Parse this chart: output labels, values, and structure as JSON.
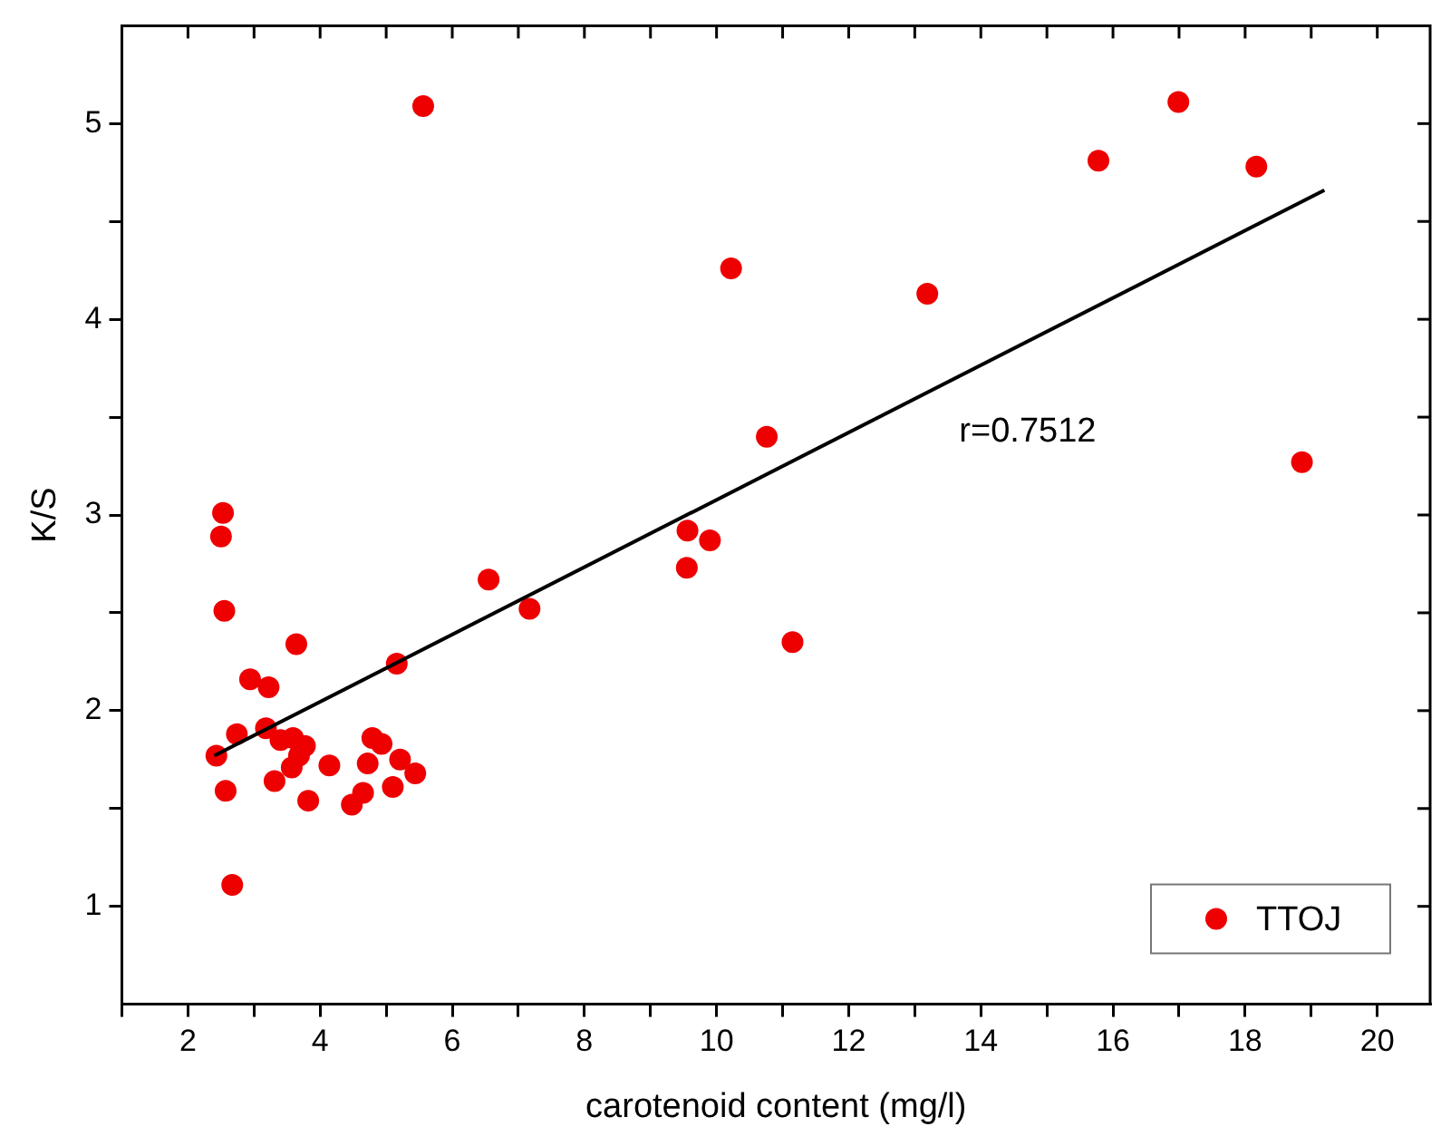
{
  "chart_data": {
    "type": "scatter",
    "xlabel": "carotenoid content (mg/l)",
    "ylabel": "K/S",
    "xlim": [
      1,
      20.8
    ],
    "ylim": [
      0.5,
      5.5
    ],
    "xticks": [
      {
        "value": 1,
        "label": null
      },
      2,
      {
        "value": 3,
        "label": null
      },
      4,
      {
        "value": 5,
        "label": null
      },
      6,
      {
        "value": 7,
        "label": null
      },
      8,
      {
        "value": 9,
        "label": null
      },
      10,
      {
        "value": 11,
        "label": null
      },
      12,
      {
        "value": 13,
        "label": null
      },
      14,
      {
        "value": 15,
        "label": null
      },
      16,
      {
        "value": 17,
        "label": null
      },
      18,
      {
        "value": 19,
        "label": null
      },
      20
    ],
    "yticks": [
      1,
      {
        "value": 1.5,
        "label": null
      },
      2,
      {
        "value": 2.5,
        "label": null
      },
      3,
      {
        "value": 3.5,
        "label": null
      },
      4,
      {
        "value": 4.5,
        "label": null
      },
      5
    ],
    "series": [
      {
        "name": "TTOJ",
        "marker": "circle",
        "color": "#ee0000",
        "x": [
          5.56,
          10.22,
          13.19,
          15.78,
          16.99,
          18.17,
          18.86,
          10.76,
          9.56,
          9.9,
          2.53,
          2.5,
          9.55,
          7.17,
          6.55,
          11.15,
          2.55,
          3.64,
          2.94,
          3.22,
          5.16,
          2.43,
          2.74,
          3.18,
          3.4,
          3.59,
          3.77,
          3.68,
          3.57,
          3.31,
          3.82,
          4.14,
          4.79,
          4.93,
          4.72,
          5.21,
          5.44,
          5.1,
          4.65,
          4.48,
          2.57,
          2.67
        ],
        "values": [
          5.09,
          4.26,
          4.13,
          4.81,
          5.11,
          4.78,
          3.27,
          3.4,
          2.92,
          2.87,
          3.01,
          2.89,
          2.73,
          2.52,
          2.67,
          2.35,
          2.51,
          2.34,
          2.16,
          2.12,
          2.24,
          1.77,
          1.88,
          1.91,
          1.85,
          1.86,
          1.82,
          1.77,
          1.71,
          1.64,
          1.54,
          1.72,
          1.86,
          1.83,
          1.73,
          1.75,
          1.68,
          1.61,
          1.58,
          1.52,
          1.59,
          1.11
        ]
      },
      {
        "type": "line",
        "marker": "none",
        "color": "#000000",
        "x": [
          2.4,
          19.2
        ],
        "values": [
          1.77,
          4.66
        ]
      }
    ],
    "grid": false,
    "legend": "bottom right",
    "annotations": [
      "r=0.7512"
    ]
  }
}
